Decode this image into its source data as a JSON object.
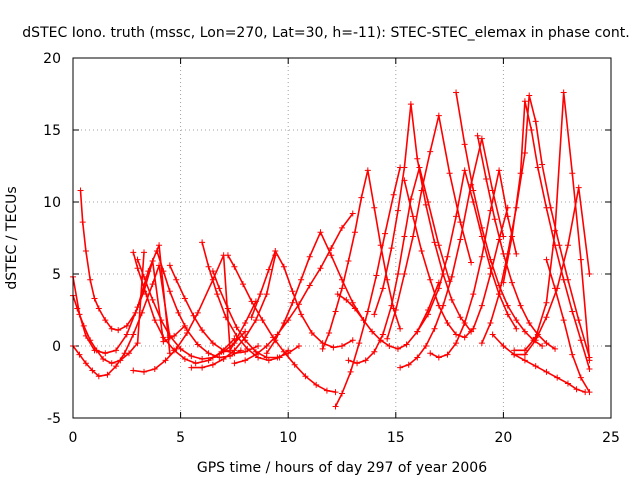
{
  "chart_data": {
    "type": "scatter",
    "title": "dSTEC Iono. truth (mssc, Lon=270, Lat=30, h=-11): STEC-STEC_elemax in phase cont.",
    "xlabel": "GPS time / hours of day 297 of year 2006",
    "ylabel": "dSTEC  / TECUs",
    "xlim": [
      0,
      25
    ],
    "ylim": [
      -5,
      20
    ],
    "xticks": [
      0,
      5,
      10,
      15,
      20,
      25
    ],
    "yticks": [
      -5,
      0,
      5,
      10,
      15,
      20
    ],
    "grid": true,
    "marker": "plus",
    "color": "#ff0000",
    "series": [
      {
        "x": [
          0.0,
          0.3,
          0.6,
          0.9,
          1.2,
          1.6,
          2.0,
          2.4,
          2.8,
          3.2,
          3.7,
          4.0,
          4.5
        ],
        "y": [
          0.0,
          -0.6,
          -1.2,
          -1.7,
          -2.1,
          -2.0,
          -1.4,
          -0.5,
          0.8,
          2.3,
          4.3,
          5.6,
          0.6
        ]
      },
      {
        "x": [
          0.0,
          0.3,
          0.6,
          1.0,
          1.5,
          2.0,
          2.5,
          3.0,
          3.5,
          4.0,
          4.5
        ],
        "y": [
          4.8,
          2.2,
          0.7,
          -0.3,
          -0.5,
          -0.3,
          0.8,
          2.7,
          5.2,
          7.0,
          -0.5
        ]
      },
      {
        "x": [
          0.0,
          0.2,
          0.5,
          0.8,
          1.1,
          1.4,
          1.8,
          2.2,
          2.6,
          3.0,
          3.3
        ],
        "y": [
          3.5,
          2.6,
          1.4,
          0.4,
          -0.3,
          -0.9,
          -1.2,
          -1.0,
          -0.5,
          0.2,
          6.5
        ]
      },
      {
        "x": [
          0.35,
          0.45,
          0.6,
          0.8,
          1.0,
          1.2,
          1.5,
          1.8,
          2.1,
          2.5,
          2.9,
          3.3,
          3.7,
          4.2,
          4.7,
          5.2
        ],
        "y": [
          10.8,
          8.6,
          6.6,
          4.6,
          3.3,
          2.6,
          1.8,
          1.2,
          1.1,
          1.4,
          2.3,
          3.8,
          5.9,
          0.3,
          0.7,
          1.4
        ]
      },
      {
        "x": [
          2.8,
          3.0,
          3.4,
          3.8,
          4.2,
          4.7,
          5.2,
          5.7,
          6.3,
          6.9,
          7.5
        ],
        "y": [
          6.5,
          5.4,
          3.6,
          1.8,
          0.6,
          -0.3,
          -0.9,
          -1.2,
          -1.0,
          -0.4,
          0.5
        ]
      },
      {
        "x": [
          2.8,
          3.3,
          3.8,
          4.3,
          4.8,
          5.3,
          5.8,
          6.5,
          7.0,
          7.3,
          8.0,
          8.5
        ],
        "y": [
          -1.7,
          -1.8,
          -1.6,
          -1.0,
          -0.2,
          0.9,
          2.3,
          4.6,
          6.3,
          -0.3,
          1.6,
          3.1
        ]
      },
      {
        "x": [
          3.0,
          3.3,
          3.7,
          4.1,
          4.5,
          5.0,
          5.5,
          6.0,
          6.5,
          7.0,
          7.5,
          8.0
        ],
        "y": [
          6.0,
          4.8,
          3.2,
          1.8,
          0.7,
          -0.2,
          -0.7,
          -0.9,
          -0.8,
          -0.4,
          0.2,
          1.0
        ]
      },
      {
        "x": [
          3.9,
          4.2,
          4.5,
          4.9,
          5.3,
          5.8,
          6.3,
          6.8,
          7.3,
          7.8
        ],
        "y": [
          6.6,
          5.2,
          3.8,
          2.3,
          1.1,
          0.1,
          -0.5,
          -0.8,
          -0.7,
          -0.3
        ]
      },
      {
        "x": [
          4.5,
          4.8,
          5.2,
          5.6,
          6.0,
          6.5,
          7.0,
          7.5,
          8.0,
          8.6
        ],
        "y": [
          5.6,
          4.6,
          3.3,
          2.1,
          1.1,
          0.2,
          -0.3,
          -0.5,
          -0.4,
          0.0
        ]
      },
      {
        "x": [
          5.5,
          6.0,
          6.5,
          7.0,
          7.5,
          8.0,
          8.5,
          9.0,
          9.4
        ],
        "y": [
          -1.5,
          -1.5,
          -1.3,
          -0.9,
          -0.3,
          0.6,
          1.8,
          3.6,
          6.3
        ]
      },
      {
        "x": [
          6.0,
          6.3,
          6.7,
          7.1,
          7.6,
          8.1,
          8.6,
          9.1,
          9.6,
          10.0
        ],
        "y": [
          7.2,
          5.5,
          3.6,
          2.0,
          0.7,
          -0.2,
          -0.8,
          -1.0,
          -0.8,
          -0.3
        ]
      },
      {
        "x": [
          6.5,
          6.8,
          7.2,
          7.6,
          8.0,
          8.5,
          9.0,
          9.5,
          10.0,
          10.5
        ],
        "y": [
          5.2,
          4.0,
          2.6,
          1.3,
          0.4,
          -0.4,
          -0.8,
          -0.8,
          -0.5,
          0.0
        ]
      },
      {
        "x": [
          7.2,
          7.5,
          7.9,
          8.3,
          8.8,
          9.3,
          9.8,
          10.3,
          10.8,
          11.3,
          11.8,
          12.2
        ],
        "y": [
          6.3,
          5.5,
          4.3,
          3.1,
          1.8,
          0.6,
          -0.4,
          -1.3,
          -2.1,
          -2.7,
          -3.1,
          -3.2
        ]
      },
      {
        "x": [
          7.5,
          8.0,
          8.5,
          9.0,
          9.5,
          10.0,
          10.5,
          11.0,
          11.5,
          12.0,
          12.5,
          13.0
        ],
        "y": [
          -1.2,
          -1.0,
          -0.6,
          0.0,
          0.8,
          1.8,
          2.9,
          4.2,
          5.4,
          6.8,
          8.2,
          9.2
        ]
      },
      {
        "x": [
          8.3,
          8.7,
          9.1,
          9.4,
          9.8,
          10.2,
          10.6,
          11.1,
          11.6,
          12.1,
          12.5,
          13.0
        ],
        "y": [
          2.0,
          3.6,
          5.3,
          6.6,
          5.5,
          3.8,
          2.2,
          0.9,
          0.2,
          -0.1,
          0.0,
          0.4
        ]
      },
      {
        "x": [
          9.0,
          9.4,
          9.8,
          10.2,
          10.6,
          11.0,
          11.5,
          12.0,
          12.5,
          13.0,
          13.5
        ],
        "y": [
          -0.5,
          0.4,
          1.6,
          3.0,
          4.6,
          6.2,
          7.9,
          6.3,
          4.6,
          3.0,
          1.8
        ]
      },
      {
        "x": [
          12.2,
          12.5,
          12.9,
          13.3,
          13.7,
          14.1,
          14.5,
          14.9,
          15.2
        ],
        "y": [
          -4.2,
          -3.3,
          -1.8,
          0.2,
          2.4,
          4.9,
          7.8,
          10.5,
          12.4
        ]
      },
      {
        "x": [
          12.3,
          12.7,
          13.1,
          13.5,
          13.9,
          14.3,
          14.7,
          15.1,
          15.5,
          16.0,
          16.5,
          17.0
        ],
        "y": [
          3.6,
          3.2,
          2.6,
          1.8,
          1.0,
          0.4,
          0.0,
          -0.2,
          0.1,
          1.0,
          2.5,
          4.4
        ]
      },
      {
        "x": [
          11.6,
          11.9,
          12.2,
          12.5,
          12.8,
          13.1,
          13.4,
          13.7,
          14.0,
          14.3,
          14.6,
          14.9,
          15.2
        ],
        "y": [
          -0.2,
          0.9,
          2.4,
          4.0,
          5.9,
          7.9,
          10.3,
          12.2,
          9.6,
          7.0,
          4.6,
          2.6,
          1.2
        ]
      },
      {
        "x": [
          12.8,
          13.2,
          13.6,
          14.0,
          14.4,
          14.8,
          15.1,
          15.4,
          15.7,
          16.1,
          16.5,
          17.0,
          17.5
        ],
        "y": [
          -1.0,
          -1.2,
          -1.0,
          -0.4,
          0.8,
          2.8,
          5.0,
          7.6,
          10.2,
          12.4,
          10.0,
          7.0,
          4.5
        ]
      },
      {
        "x": [
          14.0,
          14.4,
          14.8,
          15.1,
          15.4,
          15.7,
          16.0,
          16.4,
          16.8,
          17.2,
          17.6,
          18.0,
          18.5
        ],
        "y": [
          2.2,
          4.0,
          6.8,
          9.4,
          12.4,
          16.8,
          13.0,
          9.8,
          7.2,
          5.0,
          3.2,
          2.0,
          1.0
        ]
      },
      {
        "x": [
          14.6,
          15.0,
          15.4,
          15.8,
          16.2,
          16.6,
          17.0,
          17.5,
          18.0,
          18.5
        ],
        "y": [
          0.5,
          2.5,
          5.0,
          7.6,
          10.8,
          13.5,
          16.0,
          12.0,
          8.6,
          5.8
        ]
      },
      {
        "x": [
          15.2,
          15.6,
          16.0,
          16.4,
          16.8,
          17.2,
          17.6,
          18.0,
          18.5,
          19.0,
          19.5,
          20.0
        ],
        "y": [
          -1.5,
          -1.3,
          -0.8,
          0.0,
          1.2,
          2.8,
          4.8,
          7.4,
          11.2,
          14.4,
          10.8,
          7.6
        ]
      },
      {
        "x": [
          16.0,
          16.5,
          17.0,
          17.4,
          17.8,
          18.2,
          18.6,
          19.0,
          19.4,
          19.8,
          20.2,
          20.6
        ],
        "y": [
          1.0,
          2.2,
          4.0,
          6.2,
          9.0,
          12.2,
          10.0,
          7.6,
          5.4,
          3.6,
          2.2,
          1.2
        ]
      },
      {
        "x": [
          15.4,
          15.8,
          16.2,
          16.6,
          17.0,
          17.4,
          17.8,
          18.2,
          18.6,
          19.0,
          19.4,
          19.8,
          20.2
        ],
        "y": [
          11.5,
          9.0,
          6.6,
          4.6,
          2.8,
          1.6,
          0.8,
          0.6,
          1.2,
          2.8,
          5.0,
          7.4,
          9.6
        ]
      },
      {
        "x": [
          16.6,
          17.0,
          17.4,
          17.8,
          18.2,
          18.6,
          19.0,
          19.4,
          19.8,
          20.2,
          20.6
        ],
        "y": [
          -0.5,
          -0.8,
          -0.6,
          0.2,
          1.6,
          3.6,
          6.2,
          9.4,
          12.2,
          9.0,
          6.4
        ]
      },
      {
        "x": [
          17.8,
          18.2,
          18.6,
          19.0,
          19.4,
          19.8,
          20.2,
          20.6,
          21.0,
          21.4,
          21.8
        ],
        "y": [
          17.6,
          14.0,
          10.8,
          8.2,
          6.0,
          4.2,
          2.8,
          1.8,
          1.0,
          0.4,
          0.0
        ]
      },
      {
        "x": [
          18.8,
          19.2,
          19.6,
          20.0,
          20.4,
          20.8,
          21.2,
          21.6,
          22.0,
          22.4
        ],
        "y": [
          14.6,
          11.6,
          8.8,
          6.4,
          4.4,
          2.8,
          1.6,
          0.8,
          0.2,
          -0.2
        ]
      },
      {
        "x": [
          19.0,
          19.4,
          19.8,
          20.2,
          20.6,
          21.0,
          21.2,
          21.5,
          21.8,
          22.2,
          22.6,
          23.0,
          23.5,
          24.0
        ],
        "y": [
          0.2,
          1.6,
          3.6,
          6.4,
          9.6,
          13.4,
          17.4,
          15.6,
          12.6,
          9.6,
          7.0,
          4.6,
          1.8,
          -0.8
        ]
      },
      {
        "x": [
          20.0,
          20.4,
          20.8,
          21.0,
          21.3,
          21.6,
          22.0,
          22.4,
          22.8,
          23.2,
          23.6,
          24.0
        ],
        "y": [
          4.4,
          7.6,
          12.0,
          17.0,
          15.0,
          12.4,
          9.6,
          7.0,
          4.6,
          2.4,
          0.4,
          -1.6
        ]
      },
      {
        "x": [
          19.5,
          20.0,
          20.5,
          21.0,
          21.5,
          22.0,
          22.5,
          23.0,
          23.5,
          24.0
        ],
        "y": [
          0.8,
          0.0,
          -0.6,
          -0.6,
          0.4,
          2.0,
          4.0,
          7.0,
          11.0,
          5.0
        ]
      },
      {
        "x": [
          20.5,
          21.0,
          21.5,
          22.0,
          22.4,
          22.8,
          23.2,
          23.6,
          24.0
        ],
        "y": [
          -0.3,
          -0.3,
          0.6,
          3.0,
          8.0,
          17.6,
          12.0,
          6.0,
          -1.0
        ]
      },
      {
        "x": [
          22.0,
          22.4,
          22.8,
          23.2,
          23.6,
          24.0
        ],
        "y": [
          6.0,
          4.0,
          1.8,
          -0.6,
          -2.2,
          -3.2
        ]
      },
      {
        "x": [
          20.5,
          21.0,
          21.5,
          22.0,
          22.5,
          23.0,
          23.4,
          23.8
        ],
        "y": [
          -0.6,
          -1.0,
          -1.4,
          -1.8,
          -2.2,
          -2.6,
          -3.0,
          -3.2
        ]
      }
    ]
  }
}
